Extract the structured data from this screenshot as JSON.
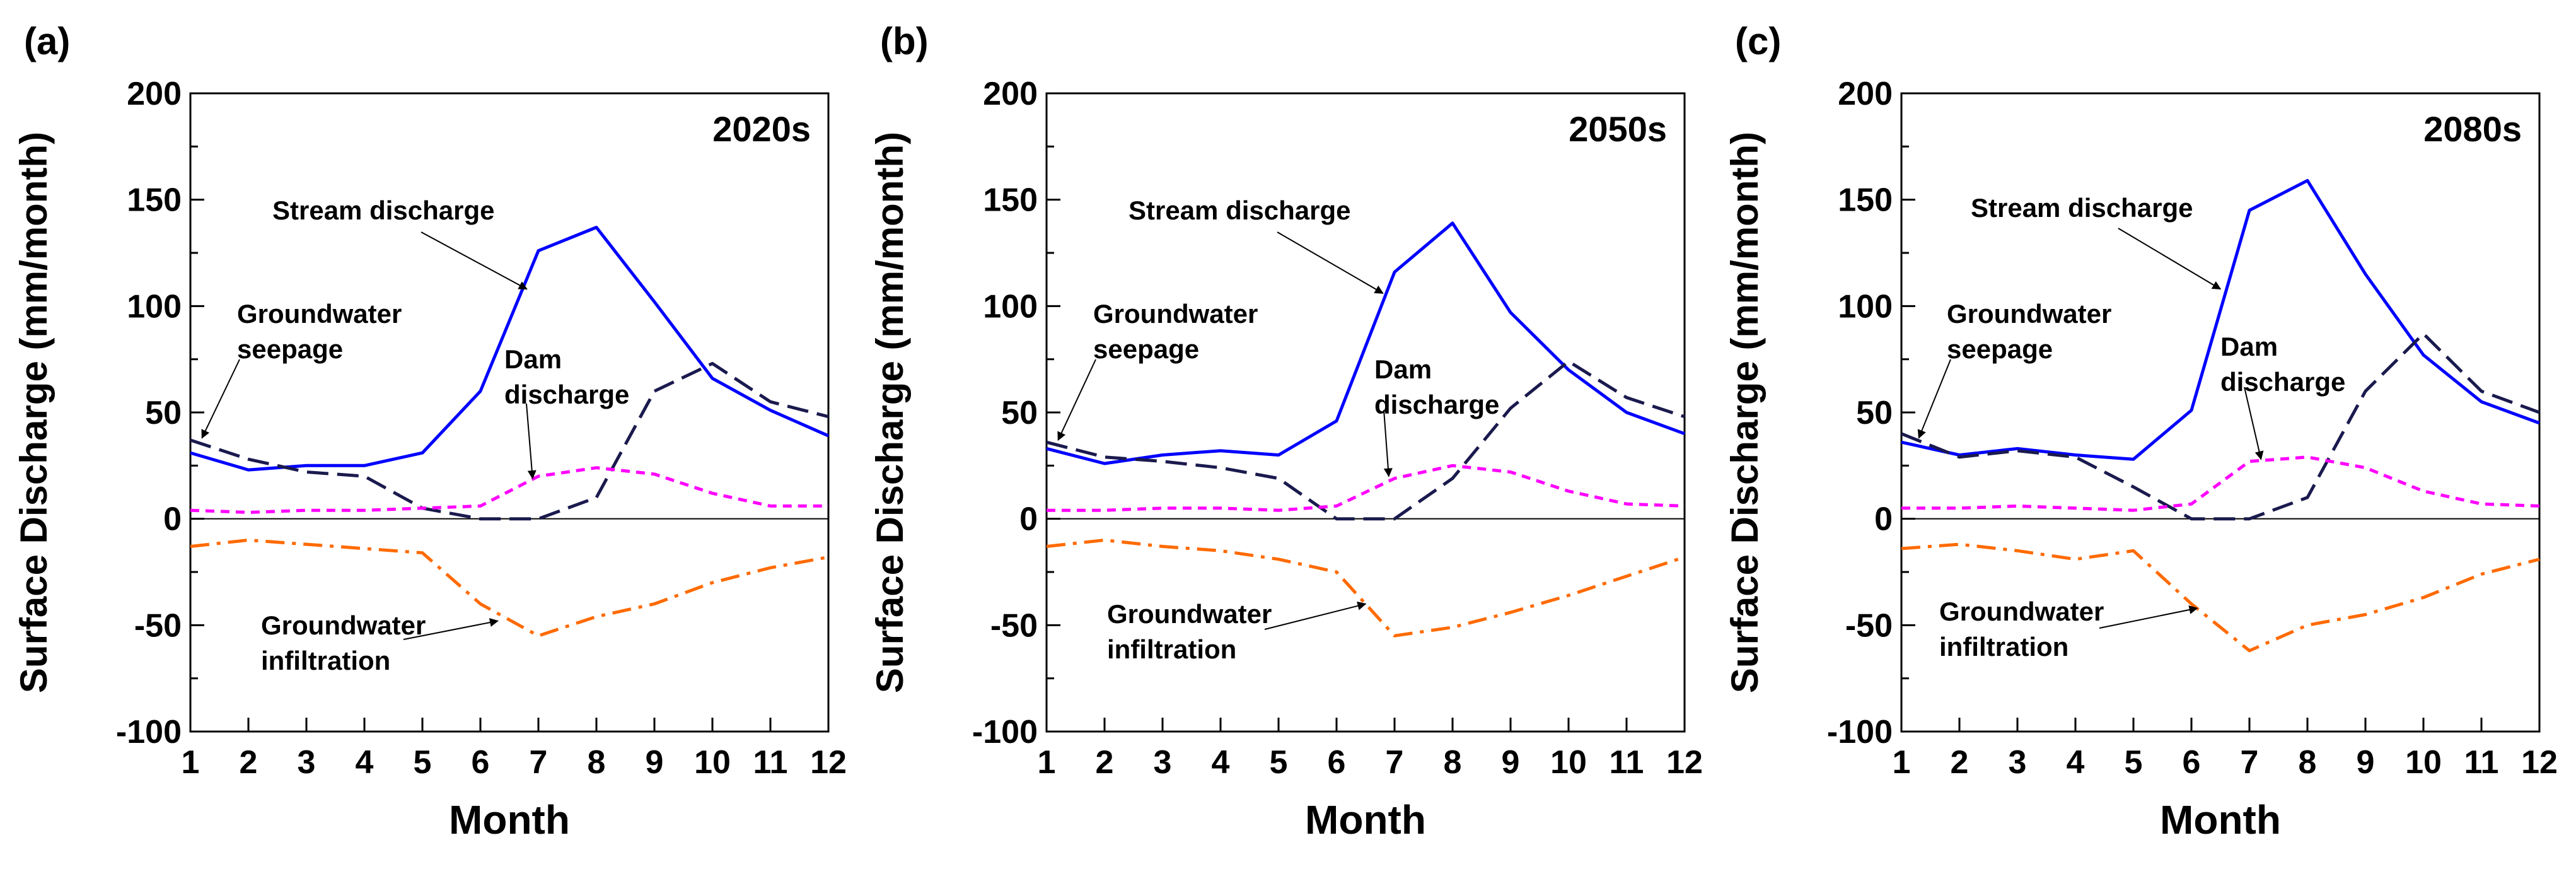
{
  "chart_data": [
    {
      "type": "line",
      "panel_label": "(a)",
      "title": "2020s",
      "xlabel": "Month",
      "ylabel": "Surface Discharge (mm/month)",
      "xlim": [
        1,
        12
      ],
      "ylim": [
        -100,
        200
      ],
      "x": [
        1,
        2,
        3,
        4,
        5,
        6,
        7,
        8,
        9,
        10,
        11,
        12
      ],
      "xticks": [
        "1",
        "2",
        "3",
        "4",
        "5",
        "6",
        "7",
        "8",
        "9",
        "10",
        "11",
        "12"
      ],
      "yticks": [
        "-100",
        "-50",
        "0",
        "50",
        "100",
        "150",
        "200"
      ],
      "series": [
        {
          "name": "Stream discharge",
          "color": "#0000ff",
          "style": "solid",
          "values": [
            31,
            23,
            25,
            25,
            31,
            60,
            126,
            137,
            102,
            66,
            51,
            39
          ]
        },
        {
          "name": "Groundwater seepage",
          "color": "#1a1a4e",
          "style": "dashed",
          "values": [
            37,
            28,
            22,
            20,
            5,
            0,
            0,
            10,
            60,
            73,
            55,
            48
          ]
        },
        {
          "name": "Dam discharge",
          "color": "#ff00ff",
          "style": "dotted",
          "values": [
            4,
            3,
            4,
            4,
            5,
            6,
            20,
            24,
            21,
            12,
            6,
            6
          ]
        },
        {
          "name": "Groundwater infiltration",
          "color": "#ff6a00",
          "style": "dashdot",
          "values": [
            -13,
            -10,
            -12,
            -14,
            -16,
            -40,
            -55,
            -46,
            -40,
            -30,
            -23,
            -18
          ]
        }
      ],
      "annotations": [
        {
          "text": [
            "Stream discharge"
          ],
          "target_series": "Stream discharge",
          "target_x": 6.8,
          "target_y": 108
        },
        {
          "text": [
            "Groundwater",
            "seepage"
          ],
          "target_series": "Groundwater seepage",
          "target_x": 1.2,
          "target_y": 38
        },
        {
          "text": [
            "Dam",
            "discharge"
          ],
          "target_series": "Dam discharge",
          "target_x": 6.9,
          "target_y": 19
        },
        {
          "text": [
            "Groundwater",
            "infiltration"
          ],
          "target_series": "Groundwater infiltration",
          "target_x": 6.3,
          "target_y": -48
        }
      ]
    },
    {
      "type": "line",
      "panel_label": "(b)",
      "title": "2050s",
      "xlabel": "Month",
      "ylabel": "Surface Discharge (mm/month)",
      "xlim": [
        1,
        12
      ],
      "ylim": [
        -100,
        200
      ],
      "x": [
        1,
        2,
        3,
        4,
        5,
        6,
        7,
        8,
        9,
        10,
        11,
        12
      ],
      "xticks": [
        "1",
        "2",
        "3",
        "4",
        "5",
        "6",
        "7",
        "8",
        "9",
        "10",
        "11",
        "12"
      ],
      "yticks": [
        "-100",
        "-50",
        "0",
        "50",
        "100",
        "150",
        "200"
      ],
      "series": [
        {
          "name": "Stream discharge",
          "color": "#0000ff",
          "style": "solid",
          "values": [
            33,
            26,
            30,
            32,
            30,
            46,
            116,
            139,
            97,
            70,
            50,
            40
          ]
        },
        {
          "name": "Groundwater seepage",
          "color": "#1a1a4e",
          "style": "dashed",
          "values": [
            36,
            29,
            27,
            24,
            19,
            0,
            0,
            19,
            52,
            74,
            57,
            48
          ]
        },
        {
          "name": "Dam discharge",
          "color": "#ff00ff",
          "style": "dotted",
          "values": [
            4,
            4,
            5,
            5,
            4,
            6,
            19,
            25,
            22,
            13,
            7,
            6
          ]
        },
        {
          "name": "Groundwater infiltration",
          "color": "#ff6a00",
          "style": "dashdot",
          "values": [
            -13,
            -10,
            -13,
            -15,
            -19,
            -25,
            -55,
            -51,
            -44,
            -36,
            -27,
            -18
          ]
        }
      ],
      "annotations": [
        {
          "text": [
            "Stream discharge"
          ],
          "target_series": "Stream discharge",
          "target_x": 6.8,
          "target_y": 106
        },
        {
          "text": [
            "Groundwater",
            "seepage"
          ],
          "target_series": "Groundwater seepage",
          "target_x": 1.2,
          "target_y": 37
        },
        {
          "text": [
            "Dam",
            "discharge"
          ],
          "target_series": "Dam discharge",
          "target_x": 6.9,
          "target_y": 20
        },
        {
          "text": [
            "Groundwater",
            "infiltration"
          ],
          "target_series": "Groundwater infiltration",
          "target_x": 6.5,
          "target_y": -40
        }
      ]
    },
    {
      "type": "line",
      "panel_label": "(c)",
      "title": "2080s",
      "xlabel": "Month",
      "ylabel": "Surface Discharge (mm/month)",
      "xlim": [
        1,
        12
      ],
      "ylim": [
        -100,
        200
      ],
      "x": [
        1,
        2,
        3,
        4,
        5,
        6,
        7,
        8,
        9,
        10,
        11,
        12
      ],
      "xticks": [
        "1",
        "2",
        "3",
        "4",
        "5",
        "6",
        "7",
        "8",
        "9",
        "10",
        "11",
        "12"
      ],
      "yticks": [
        "-100",
        "-50",
        "0",
        "50",
        "100",
        "150",
        "200"
      ],
      "series": [
        {
          "name": "Stream discharge",
          "color": "#0000ff",
          "style": "solid",
          "values": [
            36,
            30,
            33,
            30,
            28,
            51,
            145,
            159,
            115,
            77,
            55,
            45
          ]
        },
        {
          "name": "Groundwater seepage",
          "color": "#1a1a4e",
          "style": "dashed",
          "values": [
            40,
            29,
            32,
            29,
            15,
            0,
            0,
            10,
            60,
            87,
            60,
            50
          ]
        },
        {
          "name": "Dam discharge",
          "color": "#ff00ff",
          "style": "dotted",
          "values": [
            5,
            5,
            6,
            5,
            4,
            7,
            27,
            29,
            24,
            13,
            7,
            6
          ]
        },
        {
          "name": "Groundwater infiltration",
          "color": "#ff6a00",
          "style": "dashdot",
          "values": [
            -14,
            -12,
            -15,
            -19,
            -15,
            -40,
            -62,
            -50,
            -45,
            -37,
            -26,
            -19
          ]
        }
      ],
      "annotations": [
        {
          "text": [
            "Stream discharge"
          ],
          "target_series": "Stream discharge",
          "target_x": 6.5,
          "target_y": 108
        },
        {
          "text": [
            "Groundwater",
            "seepage"
          ],
          "target_series": "Groundwater seepage",
          "target_x": 1.3,
          "target_y": 38
        },
        {
          "text": [
            "Dam",
            "discharge"
          ],
          "target_series": "Dam discharge",
          "target_x": 7.2,
          "target_y": 28
        },
        {
          "text": [
            "Groundwater",
            "infiltration"
          ],
          "target_series": "Groundwater infiltration",
          "target_x": 6.1,
          "target_y": -42
        }
      ]
    }
  ]
}
